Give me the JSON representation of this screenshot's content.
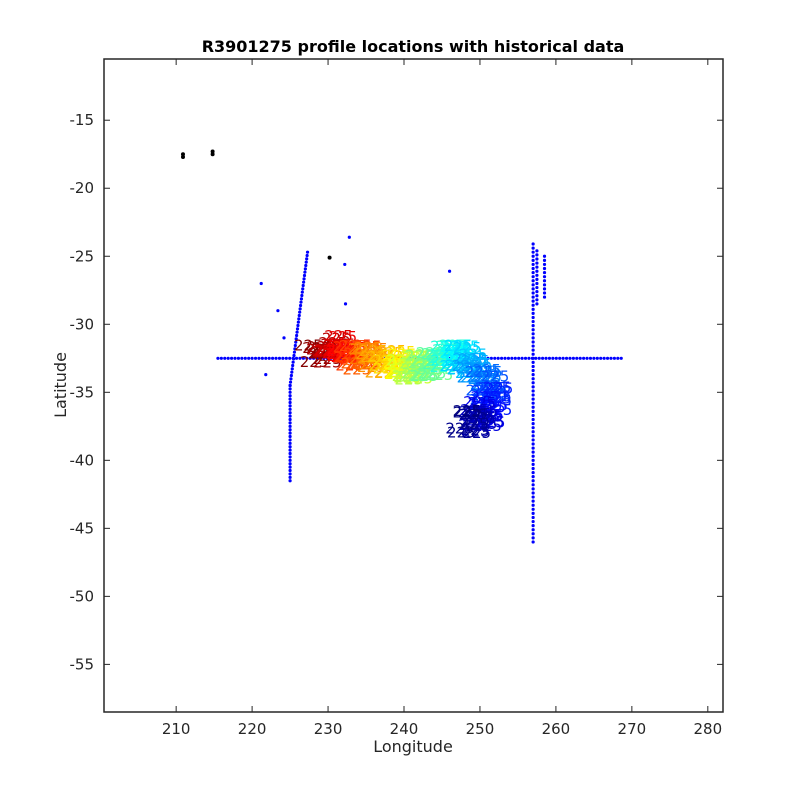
{
  "chart_data": {
    "type": "scatter",
    "title": "R3901275 profile locations with historical data",
    "xlabel": "Longitude",
    "ylabel": "Latitude",
    "xlim": [
      200.5,
      282
    ],
    "ylim": [
      -58.5,
      -10.5
    ],
    "xticks": [
      210,
      220,
      230,
      240,
      250,
      260,
      270,
      280
    ],
    "yticks": [
      -15,
      -20,
      -25,
      -30,
      -35,
      -40,
      -45,
      -50,
      -55
    ],
    "grid": false,
    "legend": "none",
    "colors": {
      "historical": "#0000ff",
      "other": "#000000",
      "profile_colormap": [
        "#00007f",
        "#0000ff",
        "#007fff",
        "#00ffff",
        "#7fff7f",
        "#ffff00",
        "#ff7f00",
        "#ff0000",
        "#7f0000"
      ]
    },
    "historical_lines": [
      {
        "kind": "horizontal",
        "lat": -32.5,
        "lon_start": 215.5,
        "lon_end": 269,
        "step": 0.45
      },
      {
        "kind": "vertical",
        "lon": 257,
        "lat_start": -46,
        "lat_end": -24,
        "step": 0.3
      },
      {
        "kind": "vertical",
        "lon": 258.5,
        "lat_start": -28,
        "lat_end": -25,
        "step": 0.3
      },
      {
        "kind": "vertical",
        "lon": 257.5,
        "lat_start": -28.5,
        "lat_end": -24.5,
        "step": 0.3
      },
      {
        "kind": "segment",
        "from": [
          225,
          -41.5
        ],
        "to": [
          225,
          -34.5
        ],
        "step": 0.25
      },
      {
        "kind": "segment",
        "from": [
          225,
          -34.5
        ],
        "to": [
          227.3,
          -24.7
        ],
        "step": 0.25
      }
    ],
    "historical_points": [
      [
        221.2,
        -27
      ],
      [
        223.4,
        -29
      ],
      [
        224.2,
        -31
      ],
      [
        221.8,
        -33.7
      ],
      [
        232.8,
        -23.6
      ],
      [
        232.2,
        -25.6
      ],
      [
        232.3,
        -28.5
      ],
      [
        246,
        -26.1
      ]
    ],
    "other_points": [
      [
        210.9,
        -17.5
      ],
      [
        210.9,
        -17.7
      ],
      [
        214.8,
        -17.3
      ],
      [
        214.8,
        -17.5
      ],
      [
        230.2,
        -25.1
      ]
    ],
    "profile_path": [
      [
        228.5,
        -32.3
      ],
      [
        231,
        -31.5
      ],
      [
        233,
        -32.2
      ],
      [
        236,
        -32.6
      ],
      [
        239,
        -33
      ],
      [
        242,
        -33.2
      ],
      [
        244.5,
        -32.8
      ],
      [
        246.5,
        -32
      ],
      [
        248,
        -32.5
      ],
      [
        249.5,
        -33.5
      ],
      [
        251,
        -34.5
      ],
      [
        252,
        -35.5
      ],
      [
        250.5,
        -36.5
      ],
      [
        249,
        -37.5
      ],
      [
        248,
        -37
      ]
    ],
    "profile_count": 240,
    "profile_label": "225"
  }
}
